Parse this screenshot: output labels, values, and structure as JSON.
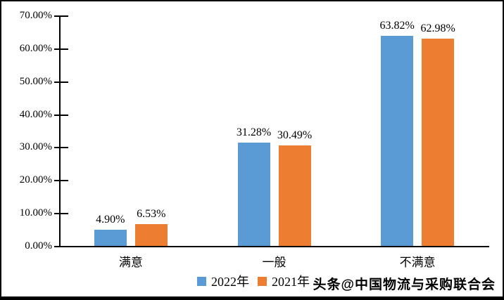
{
  "chart_data": {
    "type": "bar",
    "categories": [
      "满意",
      "一般",
      "不满意"
    ],
    "series": [
      {
        "name": "2022年",
        "color": "#5B9BD5",
        "values": [
          4.9,
          31.28,
          63.82
        ],
        "labels": [
          "4.90%",
          "31.28%",
          "63.82%"
        ]
      },
      {
        "name": "2021年",
        "color": "#ED7D31",
        "values": [
          6.53,
          30.49,
          62.98
        ],
        "labels": [
          "6.53%",
          "30.49%",
          "62.98%"
        ]
      }
    ],
    "title": "",
    "xlabel": "",
    "ylabel": "",
    "ylim": [
      0,
      70
    ],
    "y_ticks_top_down": [
      "70.00%",
      "60.00%",
      "50.00%",
      "40.00%",
      "30.00%",
      "20.00%",
      "10.00%",
      "0.00%"
    ],
    "grid": false,
    "legend_position": "bottom-center"
  },
  "legend": {
    "items": [
      {
        "label": "2022年",
        "color": "#5B9BD5"
      },
      {
        "label": "2021年",
        "color": "#ED7D31"
      }
    ]
  },
  "watermark": {
    "text": "头条@中国物流与采购联合会"
  },
  "colors": {
    "series_2022": "#5B9BD5",
    "series_2021": "#ED7D31",
    "axis": "#000000",
    "text": "#000000",
    "background": "#FFFFFF",
    "frame_border": "#000000"
  }
}
